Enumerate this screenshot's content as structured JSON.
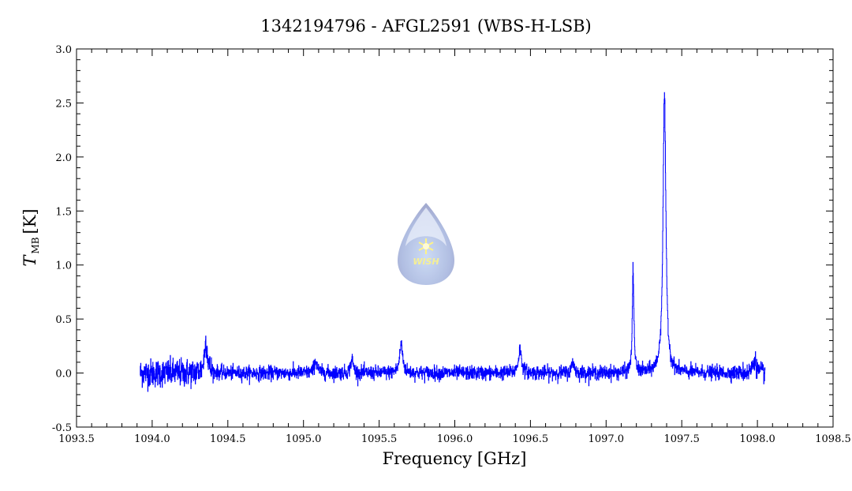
{
  "chart_data": {
    "type": "line",
    "title": "1342194796 - AFGL2591 (WBS-H-LSB)",
    "xlabel": "Frequency [GHz]",
    "ylabel_main": "T",
    "ylabel_sub": "MB",
    "ylabel_unit": "[K]",
    "xlim": [
      1093.5,
      1098.5
    ],
    "ylim": [
      -0.5,
      3.0
    ],
    "xticks": [
      "1093.5",
      "1094.0",
      "1094.5",
      "1095.0",
      "1095.5",
      "1096.0",
      "1096.5",
      "1097.0",
      "1097.5",
      "1098.0",
      "1098.5"
    ],
    "yticks": [
      "-0.5",
      "0.0",
      "0.5",
      "1.0",
      "1.5",
      "2.0",
      "2.5",
      "3.0"
    ],
    "grid": false,
    "series": [
      {
        "name": "spectrum",
        "color": "#0000ff",
        "x_start": 1093.92,
        "x_end": 1098.05,
        "baseline": 0.0,
        "noise_rms": [
          {
            "from": 1093.92,
            "to": 1094.4,
            "rms": 0.065
          },
          {
            "from": 1094.4,
            "to": 1097.9,
            "rms": 0.032
          },
          {
            "from": 1097.9,
            "to": 1098.05,
            "rms": 0.045
          }
        ],
        "peaks": [
          {
            "center": 1094.355,
            "height": 0.3,
            "width": 0.012
          },
          {
            "center": 1095.08,
            "height": 0.11,
            "width": 0.012
          },
          {
            "center": 1095.32,
            "height": 0.13,
            "width": 0.01
          },
          {
            "center": 1095.645,
            "height": 0.27,
            "width": 0.012
          },
          {
            "center": 1096.43,
            "height": 0.22,
            "width": 0.012
          },
          {
            "center": 1096.78,
            "height": 0.12,
            "width": 0.008
          },
          {
            "center": 1097.178,
            "height": 0.97,
            "width": 0.006
          },
          {
            "center": 1097.385,
            "height": 2.6,
            "width": 0.011
          },
          {
            "center": 1097.98,
            "height": 0.13,
            "width": 0.012
          }
        ]
      }
    ],
    "watermark": "WISH"
  }
}
